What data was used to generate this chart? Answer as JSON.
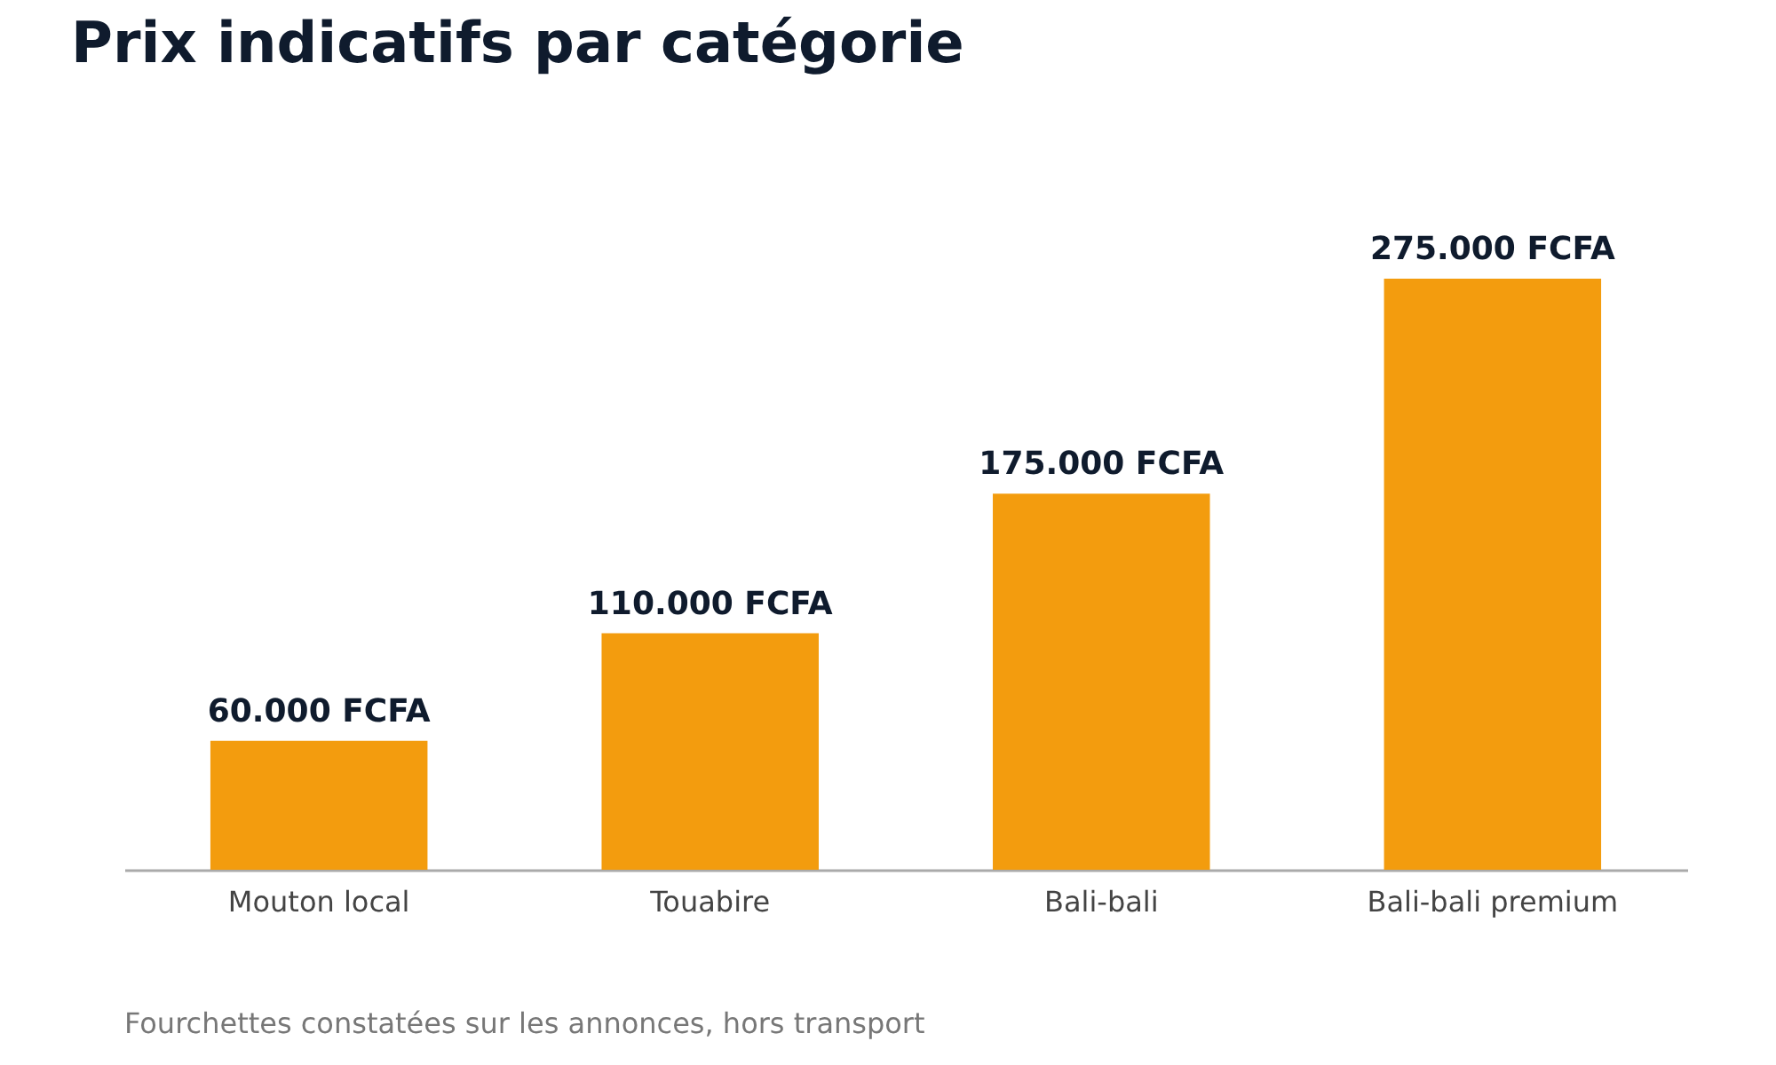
{
  "chart_data": {
    "type": "bar",
    "title": "Prix indicatifs par catégorie",
    "categories": [
      "Mouton local",
      "Touabire",
      "Bali-bali",
      "Bali-bali premium"
    ],
    "values": [
      60000,
      110000,
      175000,
      275000
    ],
    "value_labels": [
      "60.000 FCFA",
      "110.000 FCFA",
      "175.000 FCFA",
      "275.000 FCFA"
    ],
    "color": "#f39c0e",
    "annotations": [
      "Fourchettes constatées sur les annonces, hors transport"
    ]
  }
}
